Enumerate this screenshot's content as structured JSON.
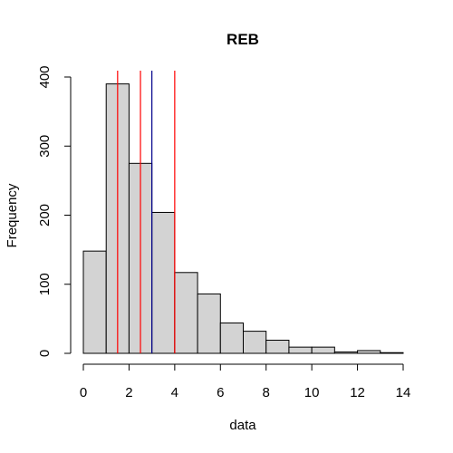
{
  "chart_data": {
    "type": "bar",
    "title": "REB",
    "xlabel": "data",
    "ylabel": "Frequency",
    "xlim": [
      0,
      14
    ],
    "ylim": [
      0,
      400
    ],
    "x_ticks": [
      0,
      2,
      4,
      6,
      8,
      10,
      12,
      14
    ],
    "y_ticks": [
      0,
      100,
      200,
      300,
      400
    ],
    "bins": [
      {
        "start": 0,
        "end": 1,
        "count": 148
      },
      {
        "start": 1,
        "end": 2,
        "count": 390
      },
      {
        "start": 2,
        "end": 3,
        "count": 275
      },
      {
        "start": 3,
        "end": 4,
        "count": 204
      },
      {
        "start": 4,
        "end": 5,
        "count": 117
      },
      {
        "start": 5,
        "end": 6,
        "count": 86
      },
      {
        "start": 6,
        "end": 7,
        "count": 44
      },
      {
        "start": 7,
        "end": 8,
        "count": 32
      },
      {
        "start": 8,
        "end": 9,
        "count": 19
      },
      {
        "start": 9,
        "end": 10,
        "count": 9
      },
      {
        "start": 10,
        "end": 11,
        "count": 9
      },
      {
        "start": 11,
        "end": 12,
        "count": 2
      },
      {
        "start": 12,
        "end": 13,
        "count": 4
      },
      {
        "start": 13,
        "end": 14,
        "count": 1
      }
    ],
    "vertical_lines": [
      {
        "x": 1.5,
        "color": "#ff0000"
      },
      {
        "x": 2.5,
        "color": "#ff0000"
      },
      {
        "x": 4.0,
        "color": "#ff0000"
      },
      {
        "x": 3.0,
        "color": "#00008b"
      }
    ],
    "colors": {
      "bar_fill": "#d3d3d3",
      "bar_stroke": "#000000"
    },
    "grid": false,
    "legend": "none"
  }
}
